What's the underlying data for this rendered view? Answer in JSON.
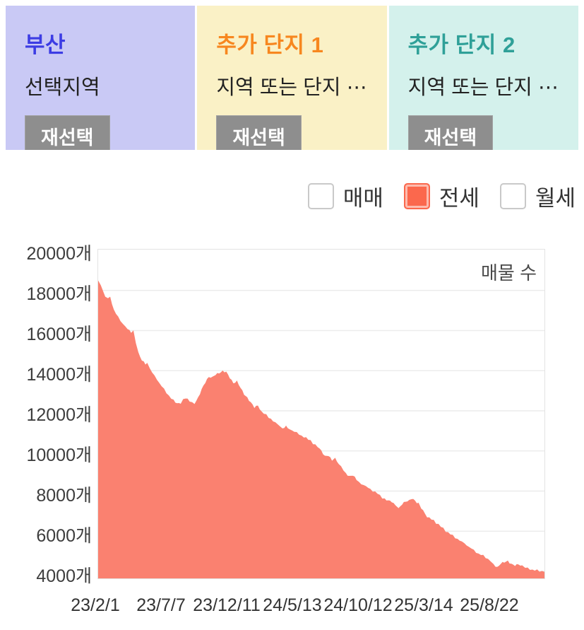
{
  "panels": [
    {
      "title": "부산",
      "title_color": "#3c3ce4",
      "bg": "#c9c9f5",
      "subtitle": "선택지역",
      "button": "재선택"
    },
    {
      "title": "추가 단지 1",
      "title_color": "#f7871f",
      "bg": "#faf1c6",
      "subtitle": "지역 또는 단지 ⋯",
      "button": "재선택"
    },
    {
      "title": "추가 단지 2",
      "title_color": "#2fa098",
      "bg": "#d4f1ec",
      "subtitle": "지역 또는 단지 ⋯",
      "button": "재선택"
    }
  ],
  "legend": [
    {
      "label": "매매",
      "checked": false
    },
    {
      "label": "전세",
      "checked": true,
      "color": "#fb684d"
    },
    {
      "label": "월세",
      "checked": false
    }
  ],
  "chart_data": {
    "type": "area",
    "title": "매물 수",
    "series_name": "전세 매물 수",
    "unit": "개",
    "area_color": "#fa8170",
    "grid_color": "#ececec",
    "ylim": [
      3650,
      20035
    ],
    "yticks": [
      20000,
      18000,
      16000,
      14000,
      12000,
      10000,
      8000,
      6000,
      4000
    ],
    "ytick_suffix": "개",
    "xtick_labels": [
      "23/2/1",
      "23/7/7",
      "23/12/11",
      "24/5/13",
      "24/10/12",
      "25/3/14",
      "25/8/22"
    ],
    "legend_position": "top-right-inside",
    "grid": true,
    "points": [
      [
        0.0,
        18500
      ],
      [
        0.006,
        18250
      ],
      [
        0.016,
        17700
      ],
      [
        0.022,
        17600
      ],
      [
        0.027,
        17650
      ],
      [
        0.035,
        17000
      ],
      [
        0.05,
        16500
      ],
      [
        0.066,
        16050
      ],
      [
        0.074,
        15900
      ],
      [
        0.079,
        15950
      ],
      [
        0.09,
        14900
      ],
      [
        0.098,
        14550
      ],
      [
        0.106,
        14350
      ],
      [
        0.11,
        14400
      ],
      [
        0.121,
        13900
      ],
      [
        0.137,
        13400
      ],
      [
        0.153,
        12900
      ],
      [
        0.169,
        12500
      ],
      [
        0.177,
        12350
      ],
      [
        0.185,
        12400
      ],
      [
        0.196,
        12650
      ],
      [
        0.205,
        12500
      ],
      [
        0.216,
        12350
      ],
      [
        0.224,
        12650
      ],
      [
        0.232,
        13100
      ],
      [
        0.24,
        13450
      ],
      [
        0.248,
        13700
      ],
      [
        0.256,
        13650
      ],
      [
        0.263,
        13800
      ],
      [
        0.271,
        13900
      ],
      [
        0.279,
        14000
      ],
      [
        0.287,
        13950
      ],
      [
        0.295,
        13650
      ],
      [
        0.303,
        13350
      ],
      [
        0.311,
        13450
      ],
      [
        0.319,
        13150
      ],
      [
        0.327,
        12850
      ],
      [
        0.334,
        12650
      ],
      [
        0.342,
        12400
      ],
      [
        0.35,
        12150
      ],
      [
        0.358,
        12250
      ],
      [
        0.366,
        11950
      ],
      [
        0.382,
        11700
      ],
      [
        0.397,
        11400
      ],
      [
        0.413,
        11150
      ],
      [
        0.421,
        11250
      ],
      [
        0.429,
        11100
      ],
      [
        0.445,
        10900
      ],
      [
        0.461,
        10700
      ],
      [
        0.476,
        10500
      ],
      [
        0.492,
        10200
      ],
      [
        0.5,
        10000
      ],
      [
        0.508,
        9750
      ],
      [
        0.516,
        9800
      ],
      [
        0.524,
        9550
      ],
      [
        0.531,
        9600
      ],
      [
        0.539,
        9350
      ],
      [
        0.555,
        8900
      ],
      [
        0.563,
        8750
      ],
      [
        0.571,
        8800
      ],
      [
        0.579,
        8550
      ],
      [
        0.595,
        8280
      ],
      [
        0.61,
        8100
      ],
      [
        0.626,
        7870
      ],
      [
        0.642,
        7600
      ],
      [
        0.65,
        7550
      ],
      [
        0.658,
        7500
      ],
      [
        0.666,
        7300
      ],
      [
        0.673,
        7100
      ],
      [
        0.681,
        7350
      ],
      [
        0.689,
        7500
      ],
      [
        0.697,
        7550
      ],
      [
        0.702,
        7650
      ],
      [
        0.71,
        7550
      ],
      [
        0.714,
        7450
      ],
      [
        0.718,
        7400
      ],
      [
        0.724,
        7160
      ],
      [
        0.732,
        6900
      ],
      [
        0.737,
        6700
      ],
      [
        0.752,
        6530
      ],
      [
        0.768,
        6230
      ],
      [
        0.784,
        5930
      ],
      [
        0.8,
        5700
      ],
      [
        0.815,
        5470
      ],
      [
        0.831,
        5230
      ],
      [
        0.847,
        4950
      ],
      [
        0.863,
        4770
      ],
      [
        0.879,
        4540
      ],
      [
        0.886,
        4370
      ],
      [
        0.894,
        4180
      ],
      [
        0.902,
        4370
      ],
      [
        0.91,
        4440
      ],
      [
        0.918,
        4500
      ],
      [
        0.926,
        4370
      ],
      [
        0.934,
        4330
      ],
      [
        0.942,
        4370
      ],
      [
        0.95,
        4260
      ],
      [
        0.957,
        4180
      ],
      [
        0.973,
        4080
      ],
      [
        0.989,
        4020
      ],
      [
        1.0,
        4000
      ]
    ]
  }
}
